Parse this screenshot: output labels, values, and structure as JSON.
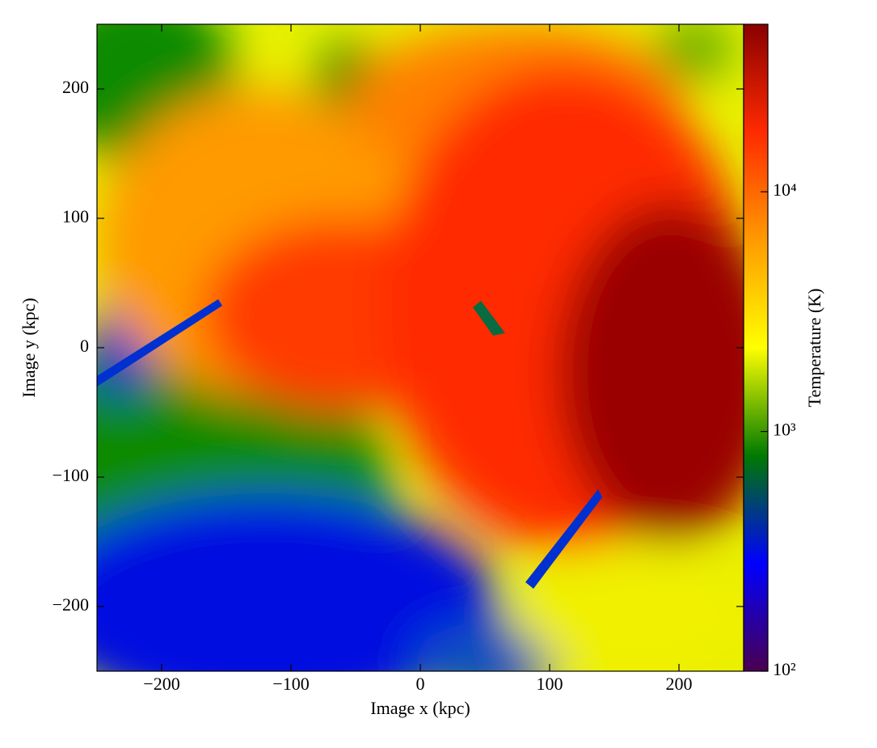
{
  "chart_data": {
    "type": "heatmap",
    "xlabel": "Image x  (kpc)",
    "ylabel": "Image y  (kpc)",
    "colorbar_label": "Temperature  (K)",
    "xlim": [
      -250,
      250
    ],
    "ylim": [
      -250,
      250
    ],
    "xticks": [
      {
        "value": -200,
        "label": "−200"
      },
      {
        "value": -100,
        "label": "−100"
      },
      0,
      100,
      200
    ],
    "yticks": [
      {
        "value": -200,
        "label": "−200"
      },
      {
        "value": -100,
        "label": "−100"
      },
      0,
      100,
      200
    ],
    "clim": [
      100,
      50000
    ],
    "colorbar_log": true,
    "cticks": [
      {
        "value": 100,
        "label": "10²"
      },
      {
        "value": 1000,
        "label": "10³"
      },
      {
        "value": 10000,
        "label": "10⁴"
      }
    ],
    "colormap": [
      "#4a0050",
      "#0000ff",
      "#007a00",
      "#ffff00",
      "#ff9a00",
      "#ff2a00",
      "#8a0000"
    ]
  }
}
